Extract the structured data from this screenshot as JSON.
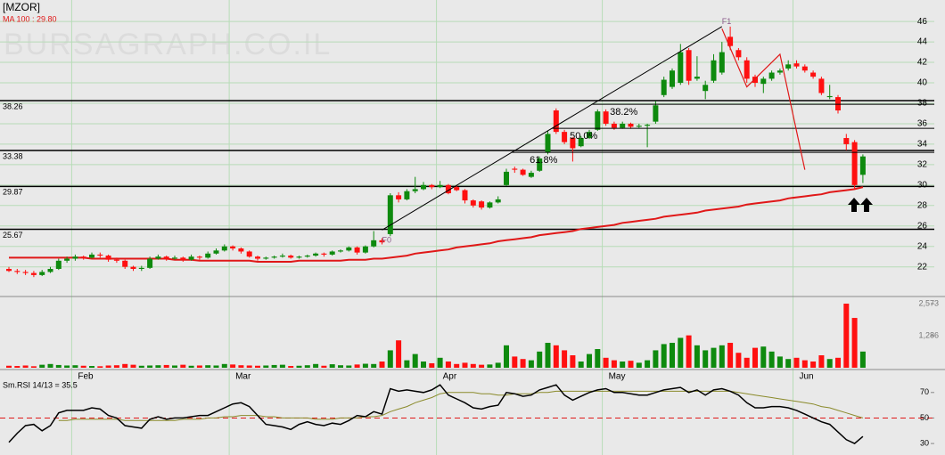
{
  "chart_data": {
    "type": "candlestick",
    "title": "[MZOR]",
    "watermark": "BURSAGRAPH.CO.IL",
    "up_color": "#0e8a0e",
    "down_color": "#ff1010",
    "grid": true,
    "categories": [
      null,
      null,
      null,
      null,
      null,
      null,
      null,
      null,
      "Feb",
      null,
      null,
      null,
      null,
      null,
      null,
      null,
      null,
      null,
      null,
      null,
      null,
      null,
      null,
      null,
      null,
      null,
      null,
      "Mar",
      null,
      null,
      null,
      null,
      null,
      null,
      null,
      null,
      null,
      null,
      null,
      null,
      null,
      null,
      null,
      null,
      null,
      null,
      null,
      null,
      null,
      null,
      null,
      null,
      "Apr",
      null,
      null,
      null,
      null,
      null,
      null,
      null,
      null,
      null,
      null,
      null,
      null,
      null,
      null,
      null,
      null,
      null,
      null,
      null,
      "May",
      null,
      null,
      null,
      null,
      null,
      null,
      null,
      null,
      null,
      null,
      null,
      null,
      null,
      null,
      null,
      null,
      null,
      null,
      null,
      null,
      null,
      null,
      "Jun",
      null,
      null,
      null,
      null,
      null,
      null,
      null,
      null
    ],
    "ohlc": [
      [
        21.8,
        22.0,
        21.5,
        21.6
      ],
      [
        21.6,
        21.8,
        21.3,
        21.5
      ],
      [
        21.5,
        21.7,
        21.2,
        21.4
      ],
      [
        21.4,
        21.6,
        21.0,
        21.2
      ],
      [
        21.2,
        21.7,
        21.1,
        21.5
      ],
      [
        21.5,
        22.0,
        21.4,
        21.8
      ],
      [
        21.8,
        22.8,
        21.7,
        22.6
      ],
      [
        22.6,
        23.0,
        22.4,
        22.8
      ],
      [
        22.8,
        23.2,
        22.6,
        23.0
      ],
      [
        23.0,
        23.1,
        22.7,
        22.9
      ],
      [
        22.9,
        23.4,
        22.8,
        23.2
      ],
      [
        23.2,
        23.4,
        22.9,
        23.1
      ],
      [
        23.1,
        23.2,
        22.5,
        22.7
      ],
      [
        22.7,
        22.9,
        22.4,
        22.6
      ],
      [
        22.6,
        22.7,
        21.8,
        22.0
      ],
      [
        22.0,
        22.1,
        21.6,
        21.8
      ],
      [
        21.8,
        22.1,
        21.6,
        21.9
      ],
      [
        21.9,
        23.0,
        21.8,
        22.8
      ],
      [
        22.8,
        23.2,
        22.7,
        23.0
      ],
      [
        23.0,
        23.1,
        22.6,
        22.8
      ],
      [
        22.8,
        23.1,
        22.7,
        22.9
      ],
      [
        22.9,
        23.0,
        22.5,
        22.7
      ],
      [
        22.7,
        23.2,
        22.6,
        23.0
      ],
      [
        23.0,
        23.1,
        22.7,
        22.9
      ],
      [
        22.9,
        23.5,
        22.8,
        23.3
      ],
      [
        23.3,
        23.8,
        23.2,
        23.6
      ],
      [
        23.6,
        24.2,
        23.5,
        24.0
      ],
      [
        24.0,
        24.1,
        23.6,
        23.8
      ],
      [
        23.8,
        23.9,
        23.3,
        23.5
      ],
      [
        23.5,
        23.6,
        22.9,
        23.0
      ],
      [
        23.0,
        23.1,
        22.6,
        22.8
      ],
      [
        22.8,
        23.0,
        22.7,
        22.9
      ],
      [
        22.9,
        23.1,
        22.8,
        23.0
      ],
      [
        23.0,
        23.3,
        22.9,
        23.1
      ],
      [
        23.1,
        23.2,
        22.8,
        22.9
      ],
      [
        22.9,
        23.1,
        22.8,
        23.0
      ],
      [
        23.0,
        23.2,
        22.9,
        23.1
      ],
      [
        23.1,
        23.4,
        23.0,
        23.3
      ],
      [
        23.3,
        23.4,
        23.0,
        23.2
      ],
      [
        23.2,
        23.6,
        23.1,
        23.5
      ],
      [
        23.5,
        23.7,
        23.4,
        23.6
      ],
      [
        23.6,
        24.0,
        23.5,
        23.9
      ],
      [
        23.9,
        24.0,
        23.2,
        23.4
      ],
      [
        23.4,
        24.1,
        23.3,
        24.0
      ],
      [
        24.0,
        25.5,
        23.9,
        24.6
      ],
      [
        24.6,
        24.8,
        24.2,
        24.4
      ],
      [
        25.2,
        29.2,
        25.0,
        29.0
      ],
      [
        29.0,
        29.3,
        28.3,
        28.6
      ],
      [
        28.6,
        29.6,
        28.5,
        29.4
      ],
      [
        29.4,
        30.8,
        29.2,
        29.6
      ],
      [
        29.6,
        30.3,
        29.5,
        30.0
      ],
      [
        30.0,
        30.1,
        29.6,
        29.8
      ],
      [
        29.8,
        30.4,
        29.7,
        30.0
      ],
      [
        30.0,
        30.1,
        29.1,
        29.2
      ],
      [
        29.8,
        30.0,
        29.4,
        29.5
      ],
      [
        29.5,
        29.6,
        28.2,
        28.5
      ],
      [
        28.5,
        28.6,
        27.8,
        28.0
      ],
      [
        28.4,
        28.5,
        27.6,
        27.8
      ],
      [
        27.8,
        28.4,
        27.7,
        28.3
      ],
      [
        28.3,
        28.9,
        28.2,
        28.6
      ],
      [
        30.0,
        31.6,
        29.9,
        31.3
      ],
      [
        31.6,
        31.8,
        31.2,
        31.5
      ],
      [
        31.5,
        31.6,
        30.9,
        31.0
      ],
      [
        30.8,
        31.4,
        30.7,
        31.2
      ],
      [
        31.4,
        32.8,
        31.3,
        32.6
      ],
      [
        33.2,
        35.3,
        33.0,
        35.0
      ],
      [
        37.3,
        37.5,
        35.0,
        35.2
      ],
      [
        35.2,
        35.4,
        34.0,
        34.2
      ],
      [
        34.6,
        34.7,
        32.3,
        33.6
      ],
      [
        33.8,
        34.8,
        33.7,
        34.6
      ],
      [
        34.6,
        35.4,
        34.5,
        35.2
      ],
      [
        35.4,
        37.4,
        35.3,
        37.2
      ],
      [
        37.2,
        37.4,
        35.8,
        36.0
      ],
      [
        36.0,
        36.2,
        35.4,
        35.6
      ],
      [
        35.6,
        36.2,
        35.5,
        36.0
      ],
      [
        36.0,
        36.1,
        35.5,
        35.7
      ],
      [
        35.7,
        36.0,
        35.6,
        35.8
      ],
      [
        35.8,
        36.0,
        33.7,
        35.9
      ],
      [
        36.2,
        38.2,
        36.0,
        37.8
      ],
      [
        38.8,
        40.6,
        38.6,
        40.3
      ],
      [
        39.6,
        41.4,
        39.4,
        41.2
      ],
      [
        40.0,
        43.8,
        39.8,
        43.0
      ],
      [
        43.2,
        43.4,
        39.8,
        40.2
      ],
      [
        40.4,
        42.6,
        40.2,
        40.6
      ],
      [
        39.2,
        40.2,
        38.4,
        39.8
      ],
      [
        40.2,
        42.8,
        40.0,
        42.2
      ],
      [
        41.0,
        44.0,
        40.8,
        43.0
      ],
      [
        44.5,
        45.5,
        43.2,
        43.6
      ],
      [
        43.2,
        43.4,
        42.2,
        42.5
      ],
      [
        42.2,
        42.5,
        40.0,
        40.4
      ],
      [
        40.6,
        40.8,
        39.6,
        40.0
      ],
      [
        39.9,
        40.6,
        39.0,
        40.4
      ],
      [
        40.4,
        41.2,
        40.2,
        41.0
      ],
      [
        41.0,
        41.4,
        40.8,
        41.2
      ],
      [
        41.4,
        42.2,
        41.2,
        41.8
      ],
      [
        41.9,
        42.2,
        41.4,
        41.6
      ],
      [
        41.6,
        41.8,
        41.0,
        41.2
      ],
      [
        41.0,
        41.2,
        40.4,
        40.6
      ],
      [
        40.4,
        40.6,
        38.8,
        39.0
      ],
      [
        38.6,
        39.8,
        38.4,
        38.7
      ],
      [
        38.6,
        38.8,
        37.0,
        37.3
      ],
      [
        34.6,
        35.0,
        33.4,
        34.0
      ],
      [
        34.2,
        34.4,
        29.6,
        30.0
      ],
      [
        31.0,
        33.0,
        30.2,
        32.8
      ]
    ],
    "ylim": [
      19.1,
      48.1
    ],
    "yticks": [
      22,
      24,
      26,
      28,
      30,
      32,
      34,
      36,
      38,
      40,
      42,
      44,
      46
    ],
    "levels": [
      38.26,
      33.38,
      29.87,
      25.67
    ],
    "ma": {
      "name": "MA 100 : 29.80",
      "color": "#e01818",
      "values": [
        22.9,
        22.9,
        22.9,
        22.9,
        22.9,
        22.9,
        22.9,
        22.9,
        22.9,
        22.9,
        22.8,
        22.8,
        22.8,
        22.8,
        22.8,
        22.8,
        22.8,
        22.8,
        22.8,
        22.8,
        22.7,
        22.7,
        22.7,
        22.6,
        22.6,
        22.6,
        22.6,
        22.6,
        22.6,
        22.6,
        22.5,
        22.5,
        22.5,
        22.5,
        22.5,
        22.6,
        22.6,
        22.6,
        22.6,
        22.6,
        22.6,
        22.7,
        22.7,
        22.7,
        22.8,
        22.8,
        22.9,
        23.0,
        23.1,
        23.3,
        23.4,
        23.5,
        23.6,
        23.7,
        23.9,
        24.0,
        24.1,
        24.2,
        24.3,
        24.5,
        24.6,
        24.7,
        24.8,
        24.9,
        25.1,
        25.2,
        25.3,
        25.4,
        25.5,
        25.7,
        25.8,
        25.9,
        26.0,
        26.1,
        26.3,
        26.4,
        26.5,
        26.6,
        26.7,
        26.9,
        27.0,
        27.1,
        27.2,
        27.3,
        27.5,
        27.6,
        27.7,
        27.8,
        27.9,
        28.1,
        28.2,
        28.3,
        28.4,
        28.5,
        28.7,
        28.8,
        28.9,
        29.0,
        29.1,
        29.3,
        29.4,
        29.5,
        29.6,
        29.8
      ]
    },
    "fibonacci": {
      "from": {
        "label": "F0",
        "x": 45,
        "value": 25.6
      },
      "to": {
        "label": "F1",
        "x": 86,
        "value": 45.5
      },
      "levels": [
        {
          "ratio": 38.2,
          "label": "38.2%"
        },
        {
          "ratio": 50,
          "label": "50.0%"
        },
        {
          "ratio": 61.8,
          "label": "61.8%"
        }
      ]
    },
    "zigzag": {
      "color": "#e01818",
      "x": [
        86,
        89,
        93,
        96
      ],
      "values": [
        45.3,
        39.6,
        42.8,
        31.5
      ]
    },
    "volume": {
      "ylim": [
        0,
        2860
      ],
      "yticks": [
        {
          "value": 1286,
          "label": "1,286"
        },
        {
          "value": 2573,
          "label": "2,573"
        }
      ],
      "values": [
        80,
        70,
        90,
        60,
        120,
        150,
        110,
        90,
        100,
        80,
        70,
        60,
        90,
        100,
        150,
        120,
        80,
        90,
        100,
        110,
        90,
        120,
        80,
        90,
        100,
        90,
        150,
        130,
        100,
        90,
        80,
        90,
        110,
        120,
        70,
        80,
        100,
        150,
        80,
        140,
        100,
        90,
        130,
        160,
        150,
        250,
        700,
        1100,
        300,
        550,
        250,
        180,
        400,
        250,
        150,
        200,
        150,
        120,
        130,
        200,
        900,
        450,
        350,
        300,
        650,
        1000,
        900,
        700,
        500,
        250,
        550,
        750,
        400,
        300,
        250,
        280,
        200,
        300,
        700,
        950,
        1000,
        1200,
        1300,
        900,
        700,
        800,
        900,
        1000,
        600,
        400,
        800,
        850,
        650,
        450,
        350,
        400,
        300,
        250,
        500,
        350,
        400,
        2573,
        2000,
        650
      ]
    },
    "rsi": {
      "name": "Sm.RSI 14/13 = 35.5",
      "color": "#000000",
      "ylim": [
        21,
        88
      ],
      "yticks": [
        30,
        50,
        70
      ],
      "reference": 50,
      "reference_color": "#e01818",
      "values": [
        31,
        38,
        44,
        45,
        40,
        44,
        54,
        56,
        56,
        56,
        58,
        57,
        52,
        50,
        44,
        43,
        42,
        49,
        51,
        49,
        50,
        50,
        51,
        52,
        52,
        55,
        58,
        61,
        62,
        59,
        52,
        45,
        44,
        43,
        41,
        45,
        47,
        45,
        44,
        46,
        45,
        48,
        52,
        51,
        55,
        53,
        73,
        71,
        72,
        71,
        70,
        72,
        76,
        68,
        65,
        62,
        58,
        57,
        59,
        60,
        70,
        69,
        67,
        68,
        72,
        74,
        76,
        68,
        64,
        67,
        70,
        72,
        73,
        70,
        70,
        69,
        68,
        68,
        70,
        72,
        73,
        74,
        70,
        72,
        68,
        72,
        73,
        71,
        68,
        62,
        58,
        58,
        59,
        59,
        58,
        56,
        53,
        50,
        47,
        45,
        39,
        33,
        30,
        35.5
      ],
      "signal": {
        "color": "#8a8a2a",
        "values": [
          null,
          null,
          null,
          null,
          null,
          null,
          48,
          48,
          49,
          49,
          49,
          49,
          49,
          49,
          48,
          48,
          48,
          48,
          48,
          48,
          48,
          49,
          49,
          49,
          50,
          50,
          51,
          51,
          52,
          52,
          52,
          51,
          51,
          50,
          50,
          50,
          50,
          49,
          49,
          49,
          50,
          50,
          50,
          51,
          51,
          52,
          55,
          57,
          59,
          62,
          64,
          66,
          69,
          70,
          70,
          70,
          70,
          69,
          69,
          68,
          68,
          69,
          69,
          69,
          70,
          70,
          71,
          71,
          71,
          71,
          71,
          71,
          71,
          71,
          71,
          71,
          71,
          71,
          71,
          71,
          71,
          71,
          71,
          71,
          71,
          71,
          71,
          71,
          70,
          69,
          68,
          67,
          66,
          65,
          64,
          63,
          62,
          61,
          59,
          58,
          56,
          54,
          52,
          50
        ]
      }
    }
  }
}
